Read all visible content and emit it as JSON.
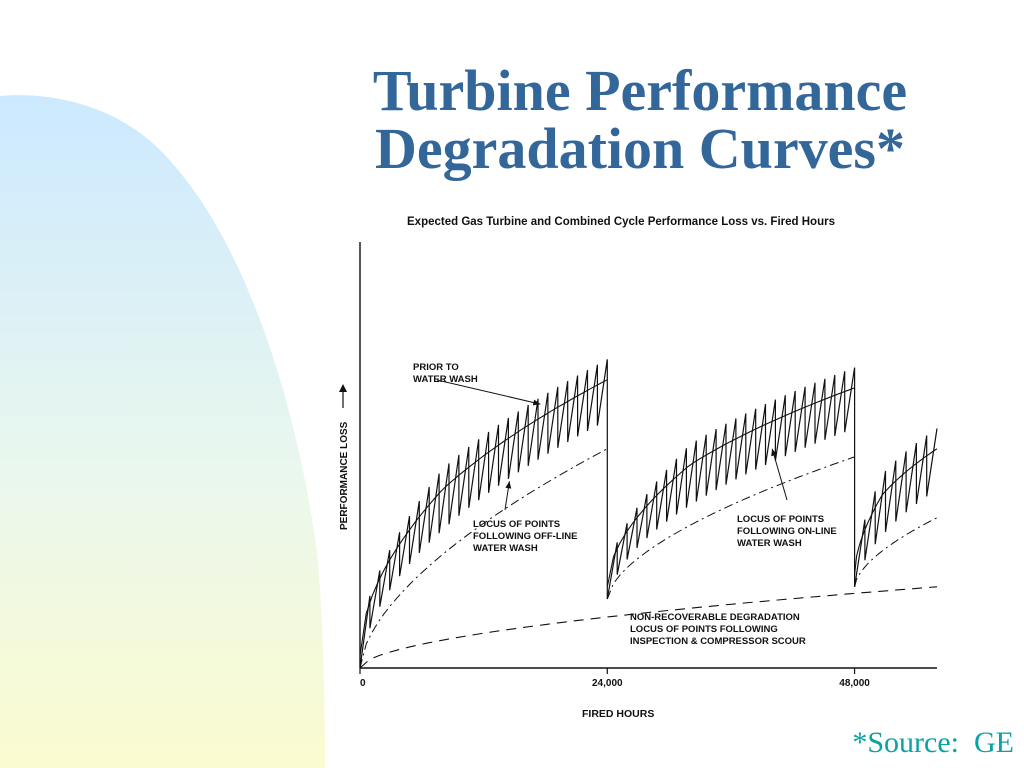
{
  "slide": {
    "title_line1": "Turbine Performance",
    "title_line2": "Degradation Curves*",
    "source": "*Source:  GE",
    "colors": {
      "title": "#336699",
      "source": "#0aa3a3",
      "ink": "#111111"
    }
  },
  "chart_data": {
    "type": "line",
    "title": "Expected Gas Turbine and Combined Cycle Performance Loss vs. Fired Hours",
    "xlabel": "FIRED HOURS",
    "ylabel": "PERFORMANCE LOSS",
    "xlim": [
      0,
      56000
    ],
    "ylim": [
      0,
      1
    ],
    "y_scale_note": "relative (no y tick values printed)",
    "x_ticks": [
      {
        "value": 0,
        "label": "0"
      },
      {
        "value": 24000,
        "label": "24,000"
      },
      {
        "value": 48000,
        "label": "48,000"
      }
    ],
    "annotations": [
      {
        "lines": [
          "PRIOR TO",
          "WATER WASH"
        ],
        "arrow_to": {
          "x": 17500,
          "y": 0.65
        }
      },
      {
        "lines": [
          "LOCUS OF POINTS",
          "FOLLOWING OFF-LINE",
          "WATER WASH"
        ],
        "arrow_to": {
          "x": 14500,
          "y": 0.46
        }
      },
      {
        "lines": [
          "LOCUS OF POINTS",
          "FOLLOWING ON-LINE",
          "WATER WASH"
        ],
        "arrow_to": {
          "x": 40000,
          "y": 0.54
        }
      },
      {
        "lines": [
          "NON-RECOVERABLE DEGRADATION",
          "LOCUS OF POINTS FOLLOWING",
          "INSPECTION & COMPRESSOR SCOUR"
        ]
      }
    ],
    "series": [
      {
        "style": "sawtooth",
        "x_range": [
          0,
          24000
        ],
        "base_start": 0,
        "peak_end": 0.76
      },
      {
        "style": "sawtooth",
        "x_range": [
          24000,
          48000
        ],
        "base_start": 0.17,
        "peak_end": 0.74
      },
      {
        "style": "sawtooth",
        "x_range": [
          48000,
          56000
        ],
        "base_start": 0.2,
        "peak_end": 0.59
      },
      {
        "style": "dashed",
        "x_range": [
          0,
          56000
        ],
        "y_start": 0,
        "y_end": 0.2
      }
    ]
  }
}
